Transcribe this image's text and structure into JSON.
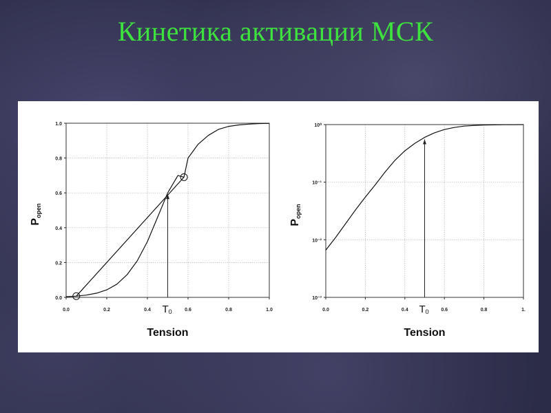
{
  "slide": {
    "title": "Кинетика активации МСК"
  },
  "chart_data": [
    {
      "type": "line",
      "xlabel": "Tension",
      "ylabel": "P",
      "ylabel_sub": "open",
      "x_ticks": [
        "0.0",
        "0.2",
        "0.4",
        "0.6",
        "0.8",
        "1.0"
      ],
      "y_ticks": [
        "0.0",
        "0.2",
        "0.4",
        "0.6",
        "0.8",
        "1.0"
      ],
      "xlim": [
        0,
        1
      ],
      "ylim": [
        0,
        1
      ],
      "grid": true,
      "marker_label": "T",
      "marker_label_sub": "0",
      "marker_x": 0.5,
      "series": [
        {
          "x": [
            0.0,
            0.05,
            0.1,
            0.15,
            0.2,
            0.25,
            0.3,
            0.35,
            0.4,
            0.45,
            0.5,
            0.55,
            0.58,
            0.6,
            0.65,
            0.7,
            0.75,
            0.8,
            0.85,
            0.9,
            0.95,
            1.0
          ],
          "y": [
            0.004,
            0.007,
            0.013,
            0.024,
            0.043,
            0.076,
            0.13,
            0.21,
            0.32,
            0.46,
            0.6,
            0.7,
            0.69,
            0.8,
            0.88,
            0.93,
            0.965,
            0.982,
            0.99,
            0.995,
            0.998,
            0.999
          ]
        },
        {
          "x": [
            0.05,
            0.58
          ],
          "y": [
            0.007,
            0.69
          ]
        }
      ],
      "open_markers": [
        {
          "x": 0.05,
          "y": 0.007
        },
        {
          "x": 0.58,
          "y": 0.69
        }
      ]
    },
    {
      "type": "line",
      "xlabel": "Tension",
      "ylabel": "P",
      "ylabel_sub": "open",
      "x_ticks": [
        "0.0",
        "0.2",
        "0.4",
        "0.6",
        "0.8",
        "1."
      ],
      "y_ticks": [
        "10⁰",
        "10⁻¹",
        "10⁻²",
        "10⁻³"
      ],
      "xlim": [
        0,
        1
      ],
      "ylim": [
        0.001,
        1
      ],
      "y_scale": "log",
      "grid": true,
      "marker_label": "T",
      "marker_label_sub": "0",
      "marker_x": 0.5,
      "series": [
        {
          "x": [
            0.0,
            0.05,
            0.1,
            0.15,
            0.2,
            0.25,
            0.3,
            0.35,
            0.4,
            0.45,
            0.5,
            0.55,
            0.6,
            0.65,
            0.7,
            0.75,
            0.8,
            0.85,
            0.9,
            0.95,
            1.0
          ],
          "y": [
            0.0066,
            0.011,
            0.019,
            0.033,
            0.055,
            0.09,
            0.15,
            0.24,
            0.35,
            0.47,
            0.6,
            0.72,
            0.82,
            0.89,
            0.94,
            0.965,
            0.982,
            0.99,
            0.995,
            0.998,
            0.999
          ]
        }
      ]
    }
  ]
}
